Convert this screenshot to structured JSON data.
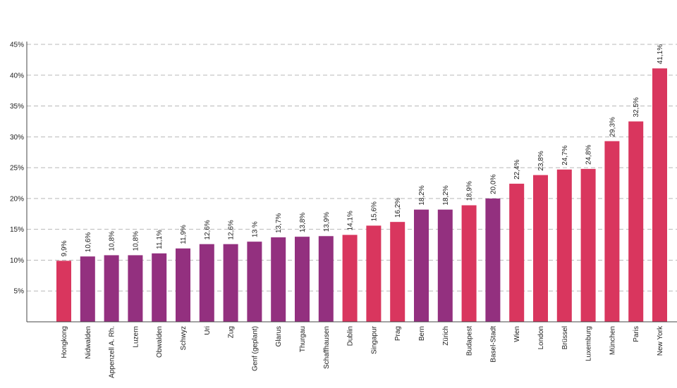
{
  "chart_data": {
    "type": "bar",
    "categories": [
      "Hongkong",
      "Nidwalden",
      "Appenzell A. Rh.",
      "Luzern",
      "Obwalden",
      "Schwyz",
      "Uri",
      "Zug",
      "Genf (geplant)",
      "Glarus",
      "Thurgau",
      "Schaffhausen",
      "Dublin",
      "Singapur",
      "Prag",
      "Bern",
      "Zürich",
      "Budapest",
      "Basel-Stadt",
      "Wien",
      "London",
      "Brüssel",
      "Luxemburg",
      "München",
      "Paris",
      "New York"
    ],
    "values": [
      9.9,
      10.6,
      10.8,
      10.8,
      11.1,
      11.9,
      12.6,
      12.6,
      13,
      13.7,
      13.8,
      13.9,
      14.1,
      15.6,
      16.2,
      18.2,
      18.2,
      18.9,
      20.0,
      22.4,
      23.8,
      24.7,
      24.8,
      29.3,
      32.5,
      41.1
    ],
    "value_labels": [
      "9,9%",
      "10,6%",
      "10,8%",
      "10,8%",
      "11,1%",
      "11,9%",
      "12,6%",
      "12,6%",
      "13 %",
      "13,7%",
      "13,8%",
      "13,9%",
      "14,1%",
      "15,6%",
      "16,2%",
      "18,2%",
      "18,2%",
      "18,9%",
      "20,0%",
      "22,4%",
      "23,8%",
      "24,7%",
      "24,8%",
      "29,3%",
      "32,5%",
      "41,1%"
    ],
    "groups": [
      "city",
      "canton",
      "canton",
      "canton",
      "canton",
      "canton",
      "canton",
      "canton",
      "canton",
      "canton",
      "canton",
      "canton",
      "city",
      "city",
      "city",
      "canton",
      "canton",
      "city",
      "canton",
      "city",
      "city",
      "city",
      "city",
      "city",
      "city",
      "city"
    ],
    "colors": {
      "city": "#d9365e",
      "canton": "#93307f"
    },
    "ylim": [
      0,
      45
    ],
    "yticks": [
      5,
      10,
      15,
      20,
      25,
      30,
      35,
      40,
      45
    ],
    "ytick_labels": [
      "5%",
      "10%",
      "15%",
      "20%",
      "25%",
      "30%",
      "35%",
      "40%",
      "45%"
    ],
    "grid": true,
    "title": "",
    "xlabel": "",
    "ylabel": ""
  }
}
